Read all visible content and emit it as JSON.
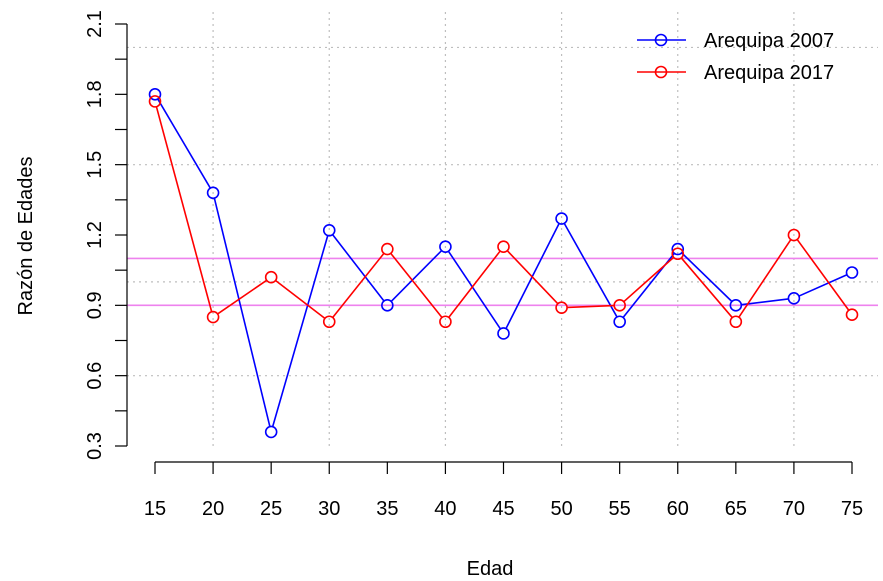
{
  "chart_data": {
    "type": "line",
    "xlabel": "Edad",
    "ylabel": "Razón de Edades",
    "x": [
      15,
      20,
      25,
      30,
      35,
      40,
      45,
      50,
      55,
      60,
      65,
      70,
      75
    ],
    "x_ticks": [
      "15",
      "20",
      "25",
      "30",
      "35",
      "40",
      "45",
      "50",
      "55",
      "60",
      "65",
      "70",
      "75"
    ],
    "y_ticks": [
      "0.3",
      "0.6",
      "0.9",
      "1.2",
      "1.5",
      "1.8",
      "2.1"
    ],
    "ylim": [
      0.3,
      2.1
    ],
    "grid": true,
    "legend_position": "top-right",
    "series": [
      {
        "name": "Arequipa 2007",
        "color": "#0000ff",
        "values": [
          1.8,
          1.38,
          0.36,
          1.22,
          0.9,
          1.15,
          0.78,
          1.27,
          0.83,
          1.14,
          0.9,
          0.93,
          1.04
        ]
      },
      {
        "name": "Arequipa 2017",
        "color": "#ff0000",
        "values": [
          1.77,
          0.85,
          1.02,
          0.83,
          1.14,
          0.83,
          1.15,
          0.89,
          0.9,
          1.12,
          0.83,
          1.2,
          0.86
        ]
      }
    ],
    "reference_lines": [
      {
        "y": 0.9,
        "color": "#ee82ee"
      },
      {
        "y": 1.1,
        "color": "#ee82ee"
      }
    ],
    "dotted_grid_y": [
      0.6,
      1.0,
      1.5,
      2.0
    ],
    "dotted_grid_x": [
      20,
      30,
      40,
      50,
      60,
      70
    ]
  }
}
